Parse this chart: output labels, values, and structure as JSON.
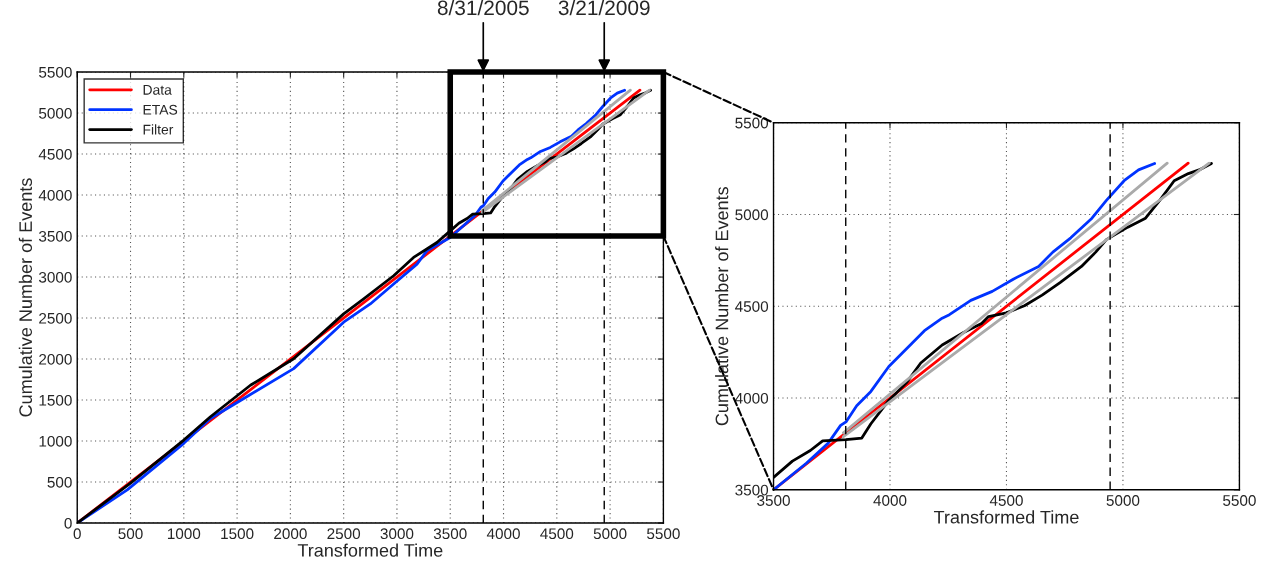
{
  "chart_data": [
    {
      "type": "line",
      "xlabel": "Transformed Time",
      "ylabel": "Cumulative Number of Events",
      "xlim": [
        0,
        5500
      ],
      "ylim": [
        0,
        5500
      ],
      "xticks": [
        0,
        500,
        1000,
        1500,
        2000,
        2500,
        3000,
        3500,
        4000,
        4500,
        5000,
        5500
      ],
      "yticks": [
        0,
        500,
        1000,
        1500,
        2000,
        2500,
        3000,
        3500,
        4000,
        4500,
        5000,
        5500
      ],
      "grid": true,
      "legend": "top left",
      "line_style": "solid",
      "series": [
        {
          "name": "Data",
          "color": "#ff0000",
          "x": [
            0,
            5280
          ],
          "values": [
            0,
            5280
          ]
        },
        {
          "name": "ETAS",
          "color": "#0033ff",
          "x": [
            0,
            469,
            1000,
            1250,
            1563,
            2031,
            2500,
            2750,
            2969,
            3188,
            3281,
            3500,
            3642,
            3734,
            3788,
            3811,
            3857,
            3918,
            3995,
            4071,
            4148,
            4224,
            4255,
            4347,
            4439,
            4531,
            4638,
            4699,
            4776,
            4867,
            4929,
            5005,
            5067,
            5136
          ],
          "values": [
            0,
            405,
            972,
            1275,
            1518,
            1883,
            2449,
            2672,
            2915,
            3158,
            3320,
            3482,
            3646,
            3753,
            3851,
            3870,
            3958,
            4036,
            4172,
            4269,
            4367,
            4435,
            4454,
            4532,
            4581,
            4649,
            4717,
            4795,
            4873,
            4980,
            5077,
            5184,
            5243,
            5278
          ]
        },
        {
          "name": "Filter",
          "color": "#000000",
          "x": [
            0,
            500,
            1000,
            1250,
            1625,
            2031,
            2500,
            2688,
            2969,
            3156,
            3375,
            3500,
            3581,
            3658,
            3711,
            3811,
            3879,
            3918,
            3995,
            4071,
            4132,
            4224,
            4316,
            4393,
            4423,
            4500,
            4577,
            4653,
            4730,
            4822,
            4883,
            4929,
            5021,
            5097,
            5158,
            5220,
            5281,
            5327,
            5380
          ],
          "values": [
            0,
            486,
            1012,
            1296,
            1680,
            2004,
            2551,
            2733,
            3016,
            3239,
            3421,
            3563,
            3656,
            3714,
            3767,
            3773,
            3782,
            3860,
            3987,
            4084,
            4191,
            4289,
            4357,
            4406,
            4444,
            4464,
            4503,
            4561,
            4629,
            4717,
            4795,
            4863,
            4931,
            4980,
            5077,
            5184,
            5223,
            5243,
            5278
          ]
        },
        {
          "color": "#aaaaaa",
          "x": [
            3800,
            5190
          ],
          "values": [
            3810,
            5280
          ]
        },
        {
          "color": "#aaaaaa",
          "x": [
            3800,
            5370
          ],
          "values": [
            3790,
            5280
          ]
        }
      ],
      "annotations": [
        {
          "text": "8/31/2005",
          "x": 3810,
          "y": 5500
        },
        {
          "text": "3/21/2009",
          "x": 4945,
          "y": 5500
        }
      ],
      "ref_lines": [
        {
          "axis": "x",
          "value": 3810,
          "line_style": "dashed",
          "color": "#000000"
        },
        {
          "axis": "x",
          "value": 4945,
          "line_style": "dashed",
          "color": "#000000"
        }
      ]
    },
    {
      "type": "line",
      "xlabel": "Transformed Time",
      "ylabel": "Cumulative Number of Events",
      "xlim": [
        3500,
        5500
      ],
      "ylim": [
        3500,
        5500
      ],
      "xticks": [
        3500,
        4000,
        4500,
        5000,
        5500
      ],
      "yticks": [
        3500,
        4000,
        4500,
        5000,
        5500
      ],
      "grid": true,
      "line_style": "solid",
      "series": [
        {
          "color": "#ff0000",
          "x": [
            3500,
            5280
          ],
          "values": [
            3500,
            5280
          ]
        },
        {
          "color": "#0033ff",
          "x": [
            3500,
            3642,
            3734,
            3788,
            3811,
            3857,
            3918,
            3995,
            4071,
            4148,
            4224,
            4255,
            4347,
            4439,
            4531,
            4638,
            4699,
            4776,
            4867,
            4929,
            5005,
            5067,
            5136
          ],
          "values": [
            3500,
            3646,
            3753,
            3851,
            3870,
            3958,
            4036,
            4172,
            4269,
            4367,
            4435,
            4454,
            4532,
            4581,
            4649,
            4717,
            4795,
            4873,
            4980,
            5077,
            5184,
            5243,
            5278
          ]
        },
        {
          "color": "#000000",
          "x": [
            3500,
            3581,
            3658,
            3711,
            3811,
            3879,
            3918,
            3995,
            4071,
            4132,
            4224,
            4316,
            4393,
            4423,
            4500,
            4577,
            4653,
            4730,
            4822,
            4883,
            4929,
            5021,
            5097,
            5158,
            5220,
            5281,
            5327,
            5380
          ],
          "values": [
            3568,
            3656,
            3714,
            3767,
            3773,
            3782,
            3860,
            3987,
            4084,
            4191,
            4289,
            4357,
            4406,
            4444,
            4464,
            4503,
            4561,
            4629,
            4717,
            4795,
            4863,
            4931,
            4980,
            5077,
            5184,
            5223,
            5243,
            5278
          ]
        },
        {
          "color": "#aaaaaa",
          "x": [
            3800,
            5190
          ],
          "values": [
            3810,
            5280
          ]
        },
        {
          "color": "#aaaaaa",
          "x": [
            3800,
            5370
          ],
          "values": [
            3790,
            5280
          ]
        }
      ],
      "ref_lines": [
        {
          "axis": "x",
          "value": 3810,
          "line_style": "dashed",
          "color": "#000000"
        },
        {
          "axis": "x",
          "value": 4945,
          "line_style": "dashed",
          "color": "#000000"
        }
      ]
    }
  ]
}
